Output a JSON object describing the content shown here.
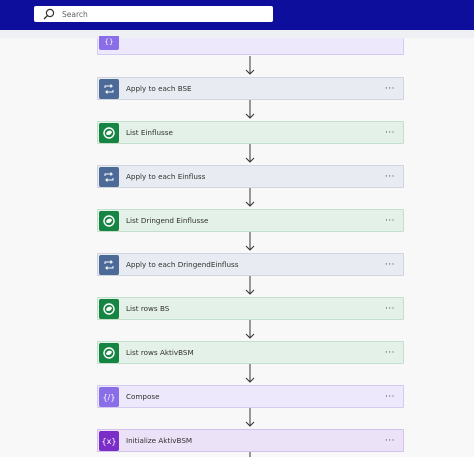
{
  "search": {
    "placeholder": "Search"
  },
  "steps": [
    {
      "type": "compose",
      "label": ""
    },
    {
      "type": "loop",
      "label": "Apply to each BSE"
    },
    {
      "type": "dataverse",
      "label": "List Einflusse"
    },
    {
      "type": "loop",
      "label": "Apply to each Einfluss"
    },
    {
      "type": "dataverse",
      "label": "List Dringend Einflusse"
    },
    {
      "type": "loop",
      "label": "Apply to each DringendEinfluss"
    },
    {
      "type": "dataverse",
      "label": "List rows BS"
    },
    {
      "type": "dataverse",
      "label": "List rows AktivBSM"
    },
    {
      "type": "compose",
      "label": "Compose"
    },
    {
      "type": "variable",
      "label": "Initialize AktivBSM"
    }
  ],
  "more_label": "···",
  "colors": {
    "header": "#0e0e9c",
    "loop": "#4c6a98",
    "dataverse": "#168543",
    "compose": "#8a6ee8",
    "variable": "#7a2ec7"
  }
}
